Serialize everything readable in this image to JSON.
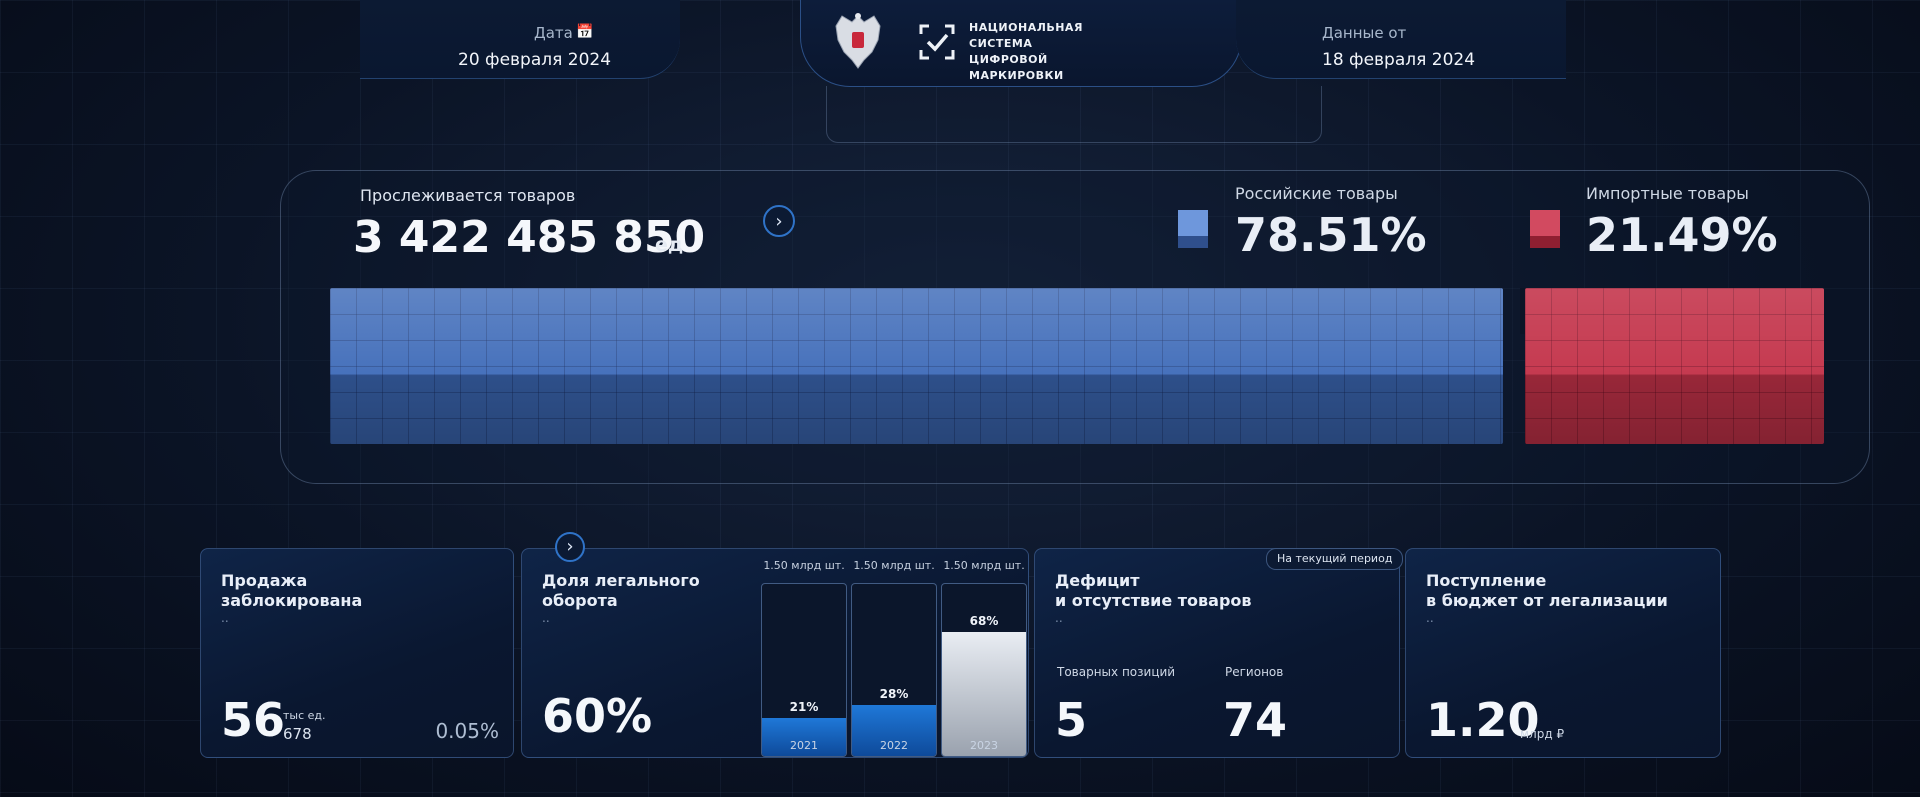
{
  "header": {
    "date_label": "Дата",
    "date_value": "20 февраля 2024",
    "brand_line1": "НАЦИОНАЛЬНАЯ",
    "brand_line2": "СИСТЕМА ЦИФРОВОЙ",
    "brand_line3": "МАРКИРОВКИ",
    "data_from_label": "Данные от",
    "data_from_value": "18 февраля 2024"
  },
  "tracked": {
    "label": "Прослеживается товаров",
    "value": "3 422 485 850",
    "unit": "ед"
  },
  "legend": {
    "russian_label": "Российские товары",
    "russian_pct": "78.51%",
    "russian_color": "#4a78c8",
    "import_label": "Импортные товары",
    "import_pct": "21.49%",
    "import_color": "#c8324a",
    "russian_share": 0.7851,
    "import_share": 0.2149
  },
  "cards": {
    "blocked": {
      "title_line1": "Продажа",
      "title_line2": "заблокирована",
      "dots": "..",
      "value": "56",
      "unit": "тыс ед.",
      "sub": "678",
      "pct": "0.05%"
    },
    "legal": {
      "title_line1": "Доля легального",
      "title_line2": "оборота",
      "dots": "..",
      "value": "60%",
      "bars": [
        {
          "head": "1.50 млрд шт.",
          "pct": "21%",
          "year": "2021",
          "value": 21
        },
        {
          "head": "1.50 млрд шт.",
          "pct": "28%",
          "year": "2022",
          "value": 28
        },
        {
          "head": "1.50 млрд шт.",
          "pct": "68%",
          "year": "2023",
          "value": 68
        }
      ]
    },
    "deficit": {
      "tag": "На текущий период",
      "title_line1": "Дефицит",
      "title_line2": "и отсутствие товаров",
      "dots": "..",
      "positions_label": "Товарных позиций",
      "positions_value": "5",
      "regions_label": "Регионов",
      "regions_value": "74"
    },
    "budget": {
      "title_line1": "Поступление",
      "title_line2": "в бюджет от легализации",
      "dots": "..",
      "value": "1.20",
      "unit": "млрд ₽"
    }
  }
}
